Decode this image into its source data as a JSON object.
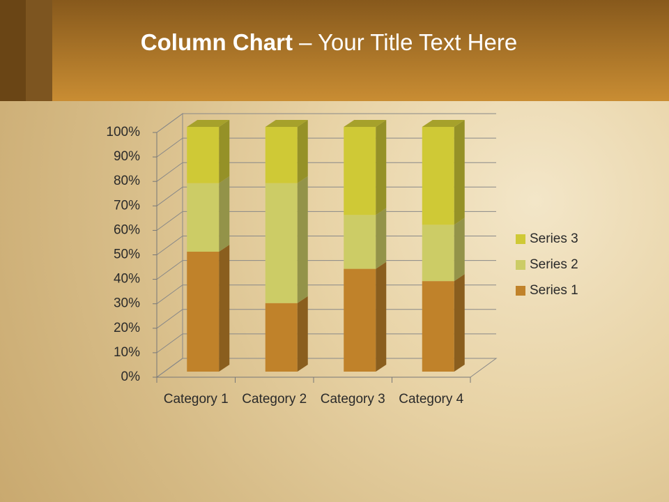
{
  "chart_data": {
    "type": "bar",
    "title": "Column Chart",
    "subtitle": "– Your Title Text Here",
    "stacked": true,
    "categories": [
      "Category 1",
      "Category 2",
      "Category 3",
      "Category 4"
    ],
    "series": [
      {
        "name": "Series 1",
        "color": "#c0822a",
        "values": [
          49,
          28,
          42,
          37
        ]
      },
      {
        "name": "Series 2",
        "color": "#cccc66",
        "values": [
          28,
          49,
          22,
          23
        ]
      },
      {
        "name": "Series 3",
        "color": "#cfc936",
        "values": [
          23,
          23,
          36,
          40
        ]
      }
    ],
    "ylim": [
      0,
      100
    ],
    "yticks": [
      {
        "value": 0,
        "label": "0%"
      },
      {
        "value": 10,
        "label": "10%"
      },
      {
        "value": 20,
        "label": "20%"
      },
      {
        "value": 30,
        "label": "30%"
      },
      {
        "value": 40,
        "label": "40%"
      },
      {
        "value": 50,
        "label": "50%"
      },
      {
        "value": 60,
        "label": "60%"
      },
      {
        "value": 70,
        "label": "70%"
      },
      {
        "value": 80,
        "label": "80%"
      },
      {
        "value": 90,
        "label": "90%"
      },
      {
        "value": 100,
        "label": "100%"
      }
    ],
    "grid": true,
    "legend": "right"
  }
}
